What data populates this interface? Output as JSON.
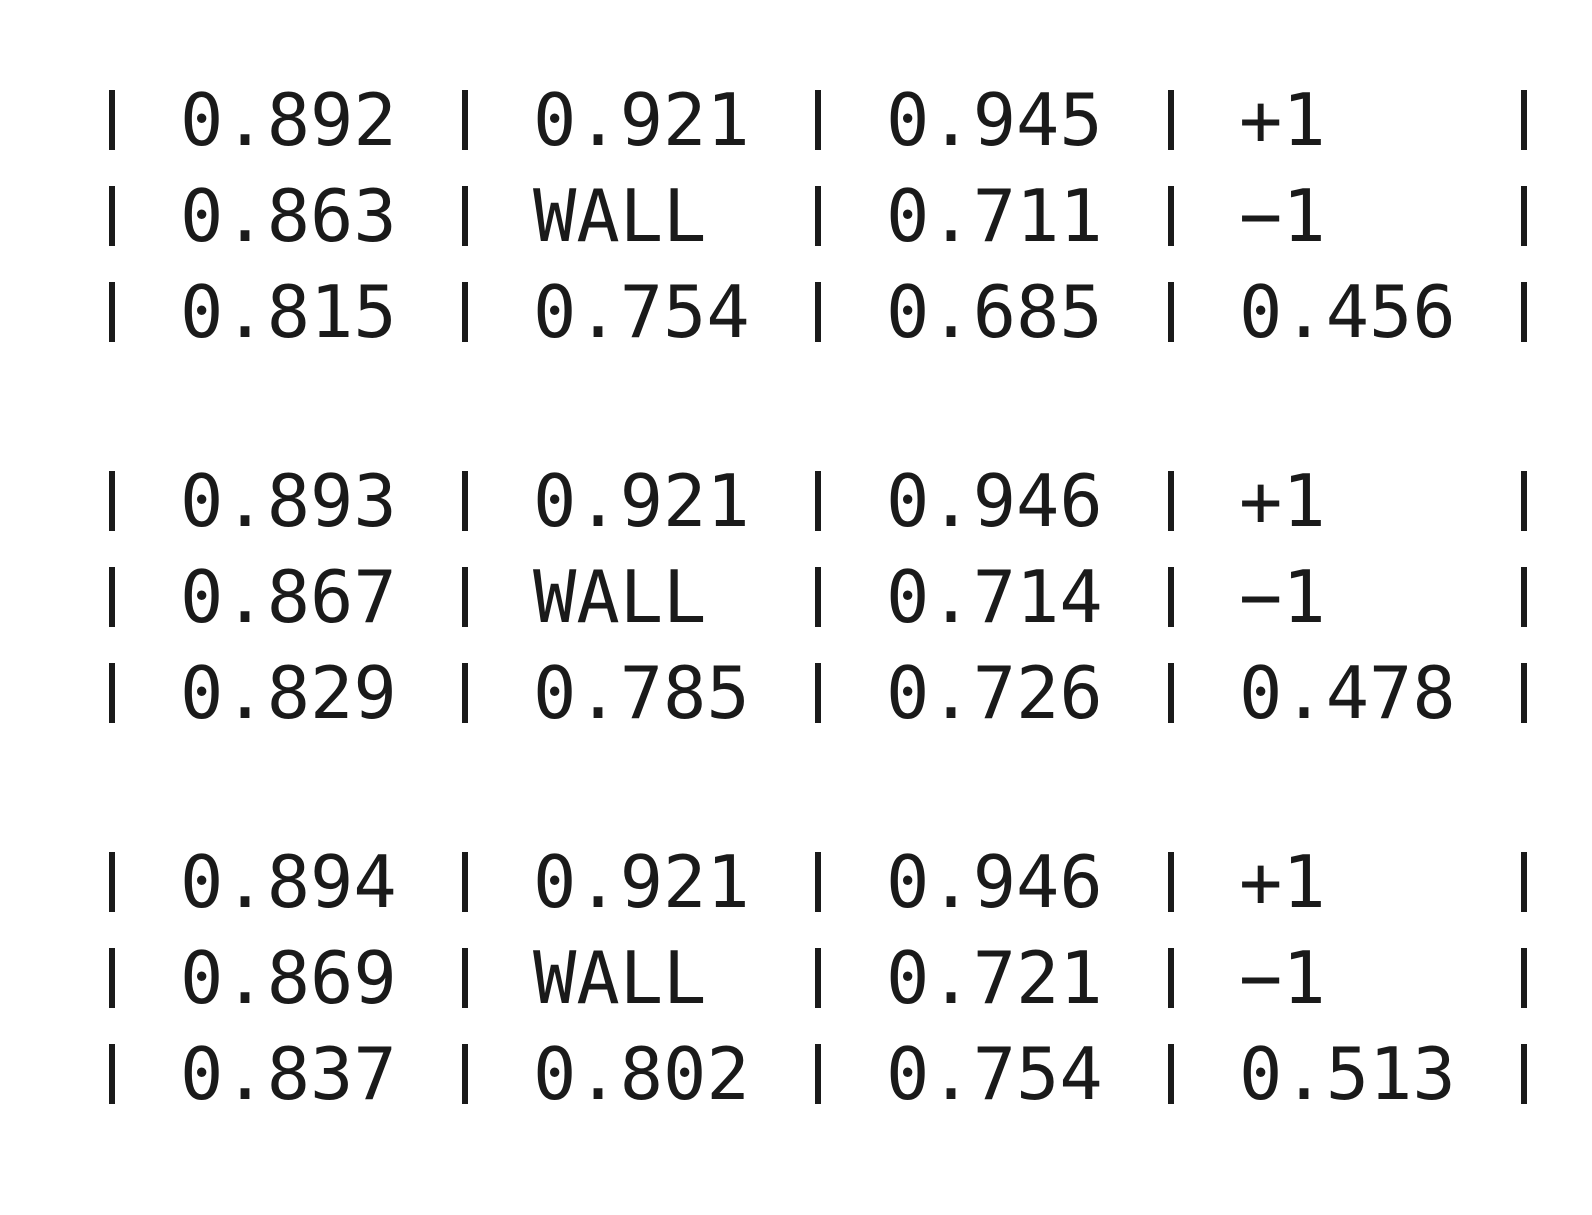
{
  "grids": [
    {
      "rows": [
        [
          "0.892",
          "0.921",
          "0.945",
          "+1"
        ],
        [
          "0.863",
          "WALL",
          "0.711",
          "−1"
        ],
        [
          "0.815",
          "0.754",
          "0.685",
          "0.456"
        ]
      ]
    },
    {
      "rows": [
        [
          "0.893",
          "0.921",
          "0.946",
          "+1"
        ],
        [
          "0.867",
          "WALL",
          "0.714",
          "−1"
        ],
        [
          "0.829",
          "0.785",
          "0.726",
          "0.478"
        ]
      ]
    },
    {
      "rows": [
        [
          "0.894",
          "0.921",
          "0.946",
          "+1"
        ],
        [
          "0.869",
          "WALL",
          "0.721",
          "−1"
        ],
        [
          "0.837",
          "0.802",
          "0.754",
          "0.513"
        ]
      ]
    }
  ],
  "colors": {
    "text": "#1a1a1a",
    "background": "#ffffff"
  }
}
